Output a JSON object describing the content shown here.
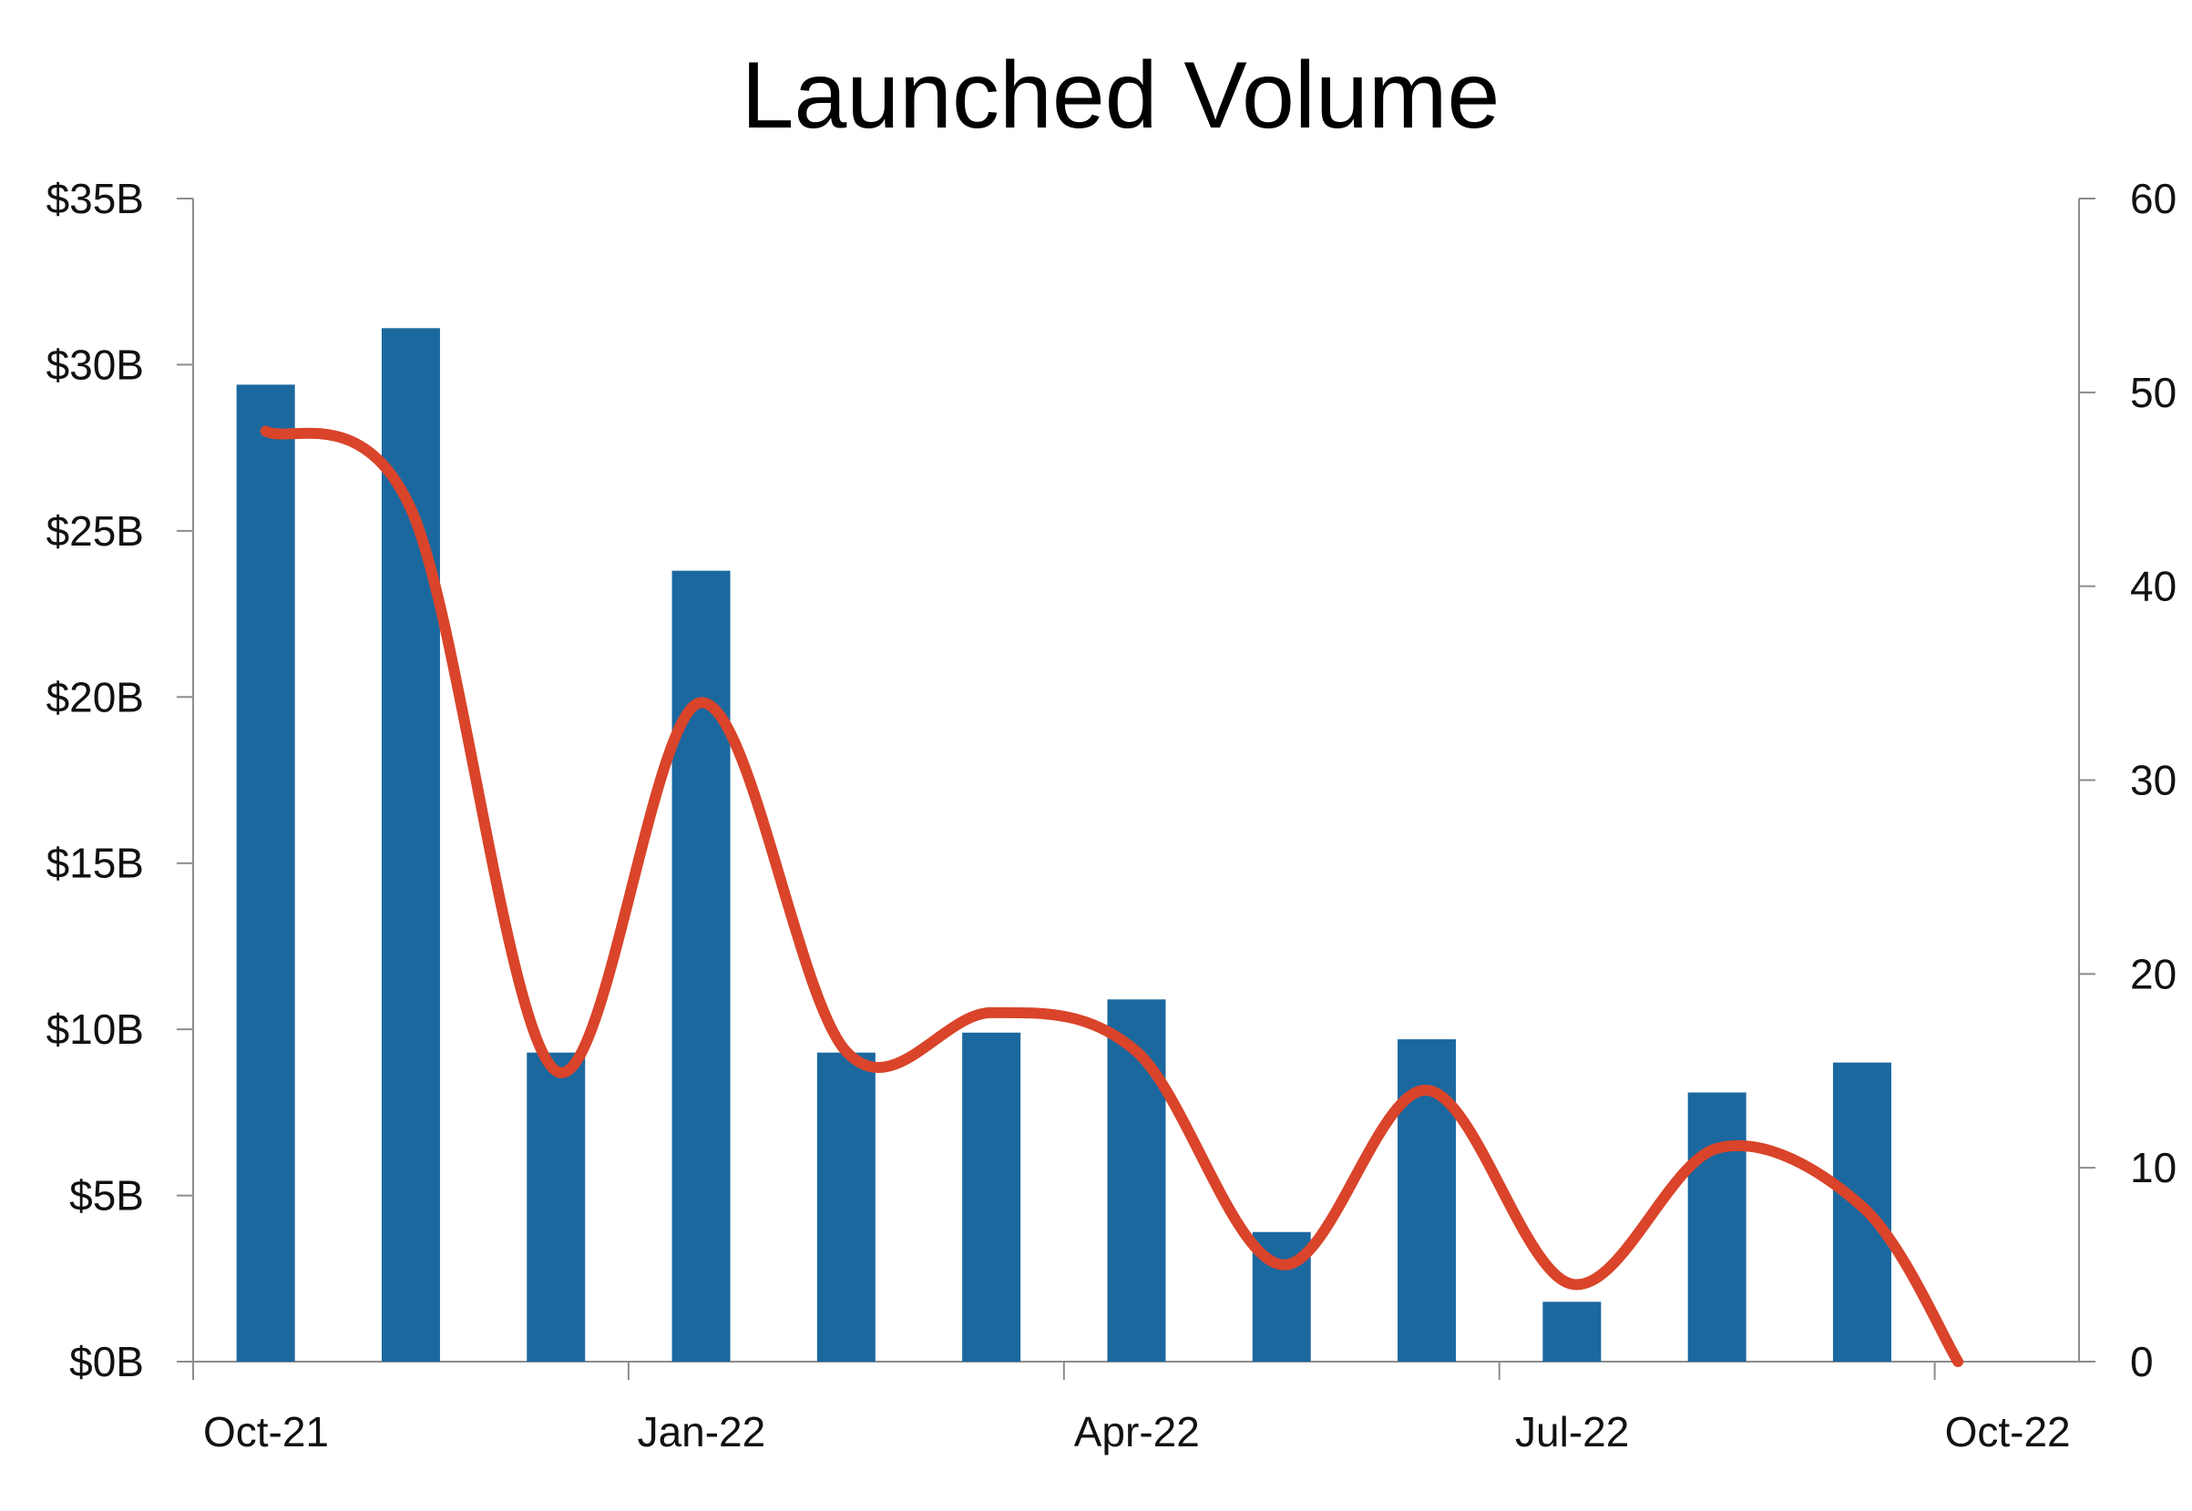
{
  "chart_data": {
    "type": "bar+line",
    "title": "Launched Volume",
    "x_ticks": [
      "Oct-21",
      "Jan-22",
      "Apr-22",
      "Jul-22",
      "Oct-22"
    ],
    "left_axis": {
      "ylim": [
        0,
        35
      ],
      "ticks": [
        0,
        5,
        10,
        15,
        20,
        25,
        30,
        35
      ],
      "tick_labels": [
        "$0B",
        "$5B",
        "$10B",
        "$15B",
        "$20B",
        "$25B",
        "$30B",
        "$35B"
      ]
    },
    "right_axis": {
      "ylim": [
        0,
        60
      ],
      "ticks": [
        0,
        10,
        20,
        30,
        40,
        50,
        60
      ],
      "tick_labels": [
        "0",
        "10",
        "20",
        "30",
        "40",
        "50",
        "60"
      ]
    },
    "bar_series": {
      "axis": "left",
      "color": "#1b689f",
      "dates": [
        "2021-10",
        "2021-11",
        "2021-12",
        "2022-01",
        "2022-02",
        "2022-03",
        "2022-04",
        "2022-05",
        "2022-06",
        "2022-07",
        "2022-08",
        "2022-09"
      ],
      "values": [
        29.4,
        31.1,
        9.3,
        23.8,
        9.3,
        9.9,
        10.9,
        3.9,
        9.7,
        1.8,
        8.1,
        9.0
      ]
    },
    "line_series": {
      "axis": "right",
      "color": "#d9442a",
      "dates": [
        "2021-10",
        "2021-11",
        "2021-12",
        "2022-01",
        "2022-02",
        "2022-03",
        "2022-04",
        "2022-05",
        "2022-06",
        "2022-07",
        "2022-08",
        "2022-09",
        "2022-10"
      ],
      "values": [
        48,
        44,
        15,
        34,
        16,
        18,
        16,
        5,
        14,
        4,
        11,
        8,
        0
      ]
    },
    "grid": false,
    "legend": "none"
  }
}
